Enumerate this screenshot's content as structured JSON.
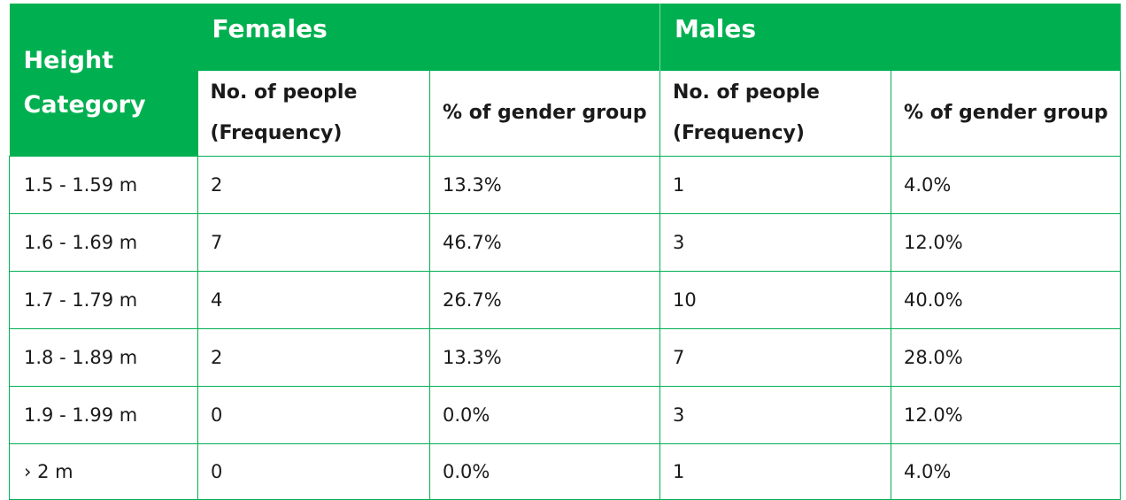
{
  "header": {
    "height_category_line1": "Height",
    "height_category_line2": "Category",
    "females": "Females",
    "males": "Males",
    "females_freq_line1": "No. of people",
    "females_freq_line2": "(Frequency)",
    "females_pct": "% of gender group",
    "males_freq_line1": "No. of people",
    "males_freq_line2": "(Frequency)",
    "males_pct": "% of gender group"
  },
  "rows": [
    {
      "category": "1.5 - 1.59 m",
      "f_count": "2",
      "f_pct": "13.3%",
      "m_count": "1",
      "m_pct": "4.0%"
    },
    {
      "category": "1.6 - 1.69 m",
      "f_count": "7",
      "f_pct": "46.7%",
      "m_count": "3",
      "m_pct": "12.0%"
    },
    {
      "category": "1.7 - 1.79 m",
      "f_count": "4",
      "f_pct": "26.7%",
      "m_count": "10",
      "m_pct": "40.0%"
    },
    {
      "category": "1.8 - 1.89 m",
      "f_count": "2",
      "f_pct": "13.3%",
      "m_count": "7",
      "m_pct": "28.0%"
    },
    {
      "category": "1.9 - 1.99 m",
      "f_count": "0",
      "f_pct": "0.0%",
      "m_count": "3",
      "m_pct": "12.0%"
    },
    {
      "category": "› 2 m",
      "f_count": "0",
      "f_pct": "0.0%",
      "m_count": "1",
      "m_pct": "4.0%"
    }
  ],
  "colors": {
    "header_green": "#00b050",
    "border_green": "#00b050",
    "header_text": "#ffffff",
    "body_text": "#1a1a1a"
  }
}
